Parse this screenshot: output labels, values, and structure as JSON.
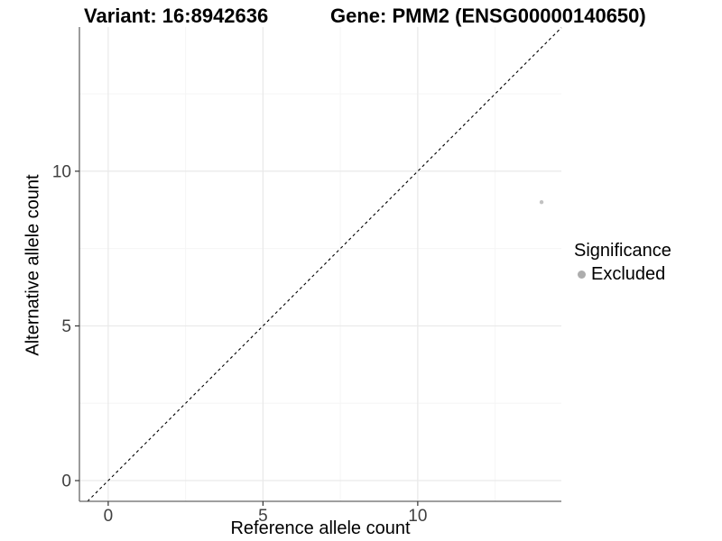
{
  "chart_data": {
    "type": "scatter",
    "title_left": "Variant: 16:8942636",
    "title_right": "Gene: PMM2 (ENSG00000140650)",
    "xlabel": "Reference allele count",
    "ylabel": "Alternative allele count",
    "xlim": [
      -0.93,
      14.64
    ],
    "ylim": [
      -0.67,
      14.66
    ],
    "x_major_ticks": [
      0,
      5,
      10
    ],
    "y_major_ticks": [
      0,
      5,
      10
    ],
    "x_minor_gridlines": [
      2.5,
      7.5,
      12.5
    ],
    "y_minor_gridlines": [
      2.5,
      7.5,
      12.5
    ],
    "grid": "major and minor horizontal+vertical gridlines, light gray, white background",
    "points": [
      {
        "x": 14,
        "y": 9,
        "series": "Excluded"
      }
    ],
    "reference_line": {
      "kind": "identity y=x",
      "style": "dashed",
      "color": "#000000"
    },
    "legend": {
      "title": "Significance",
      "position": "right",
      "entries": [
        {
          "label": "Excluded",
          "color": "#adadad"
        }
      ]
    },
    "colors": {
      "point": "#c2c2c2",
      "grid_major": "#e9e9e9",
      "grid_minor": "#f5f5f5",
      "axis_line": "#666666",
      "tick": "#333333",
      "tick_label": "#404040",
      "title": "#000000"
    }
  }
}
